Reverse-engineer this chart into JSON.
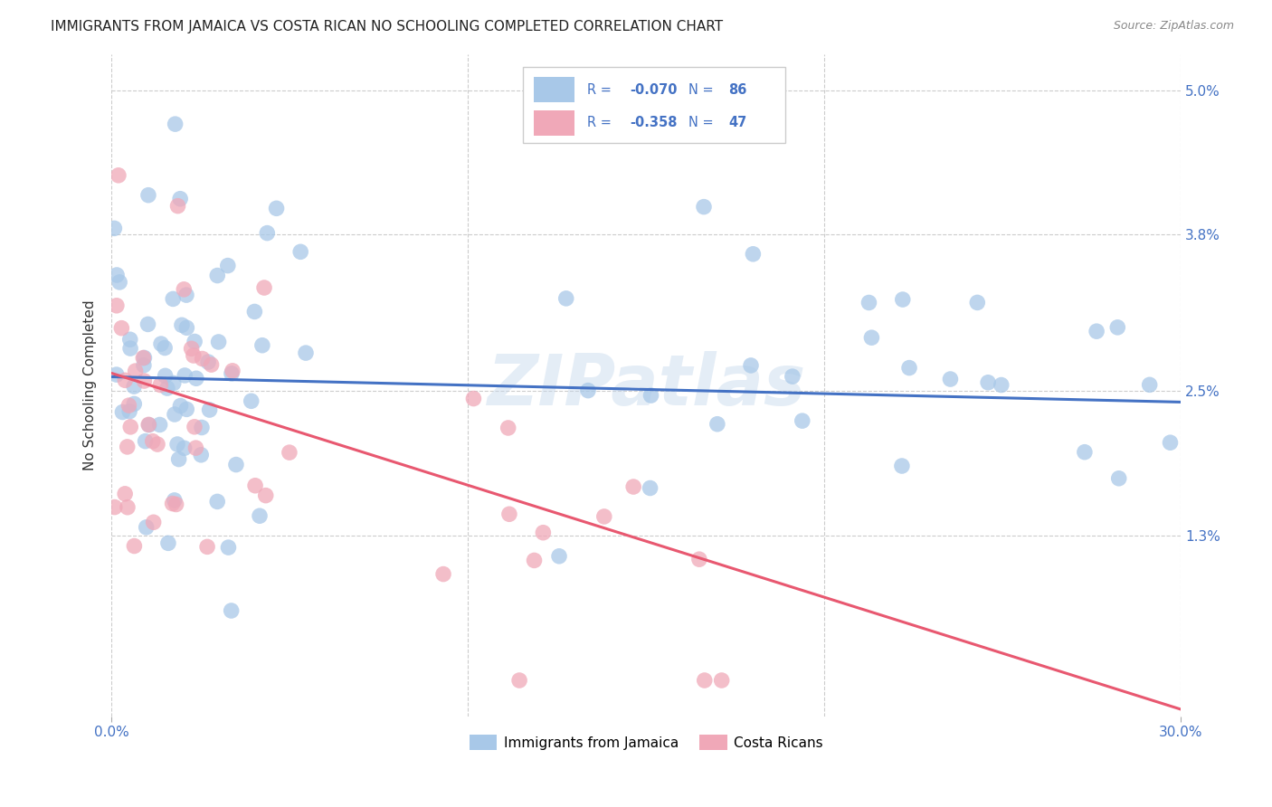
{
  "title": "IMMIGRANTS FROM JAMAICA VS COSTA RICAN NO SCHOOLING COMPLETED CORRELATION CHART",
  "source": "Source: ZipAtlas.com",
  "ylabel": "No Schooling Completed",
  "xmin": 0.0,
  "xmax": 0.3,
  "ymin": -0.002,
  "ymax": 0.053,
  "blue_color": "#A8C8E8",
  "pink_color": "#F0A8B8",
  "blue_line_color": "#4472C4",
  "pink_line_color": "#E85870",
  "watermark": "ZIPatlas",
  "blue_intercept": 0.0262,
  "blue_slope": -0.007,
  "pink_intercept": 0.0265,
  "pink_slope": -0.093,
  "legend_text_color": "#4472C4",
  "axis_tick_color": "#4472C4",
  "grid_color": "#CCCCCC",
  "title_color": "#222222",
  "source_color": "#888888",
  "ylabel_color": "#333333"
}
